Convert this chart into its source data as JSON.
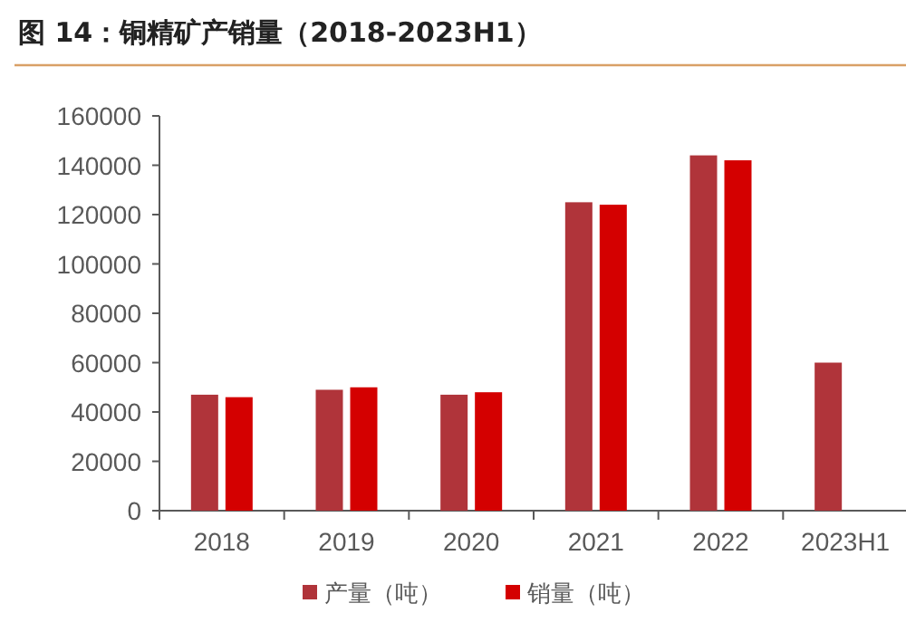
{
  "chart_data": {
    "type": "bar",
    "title": "图 14：铜精矿产销量（2018-2023H1）",
    "categories": [
      "2018",
      "2019",
      "2020",
      "2021",
      "2022",
      "2023H1"
    ],
    "series": [
      {
        "name": "产量（吨）",
        "color": "#b0343a",
        "values": [
          47000,
          49000,
          47000,
          125000,
          144000,
          60000
        ]
      },
      {
        "name": "销量（吨）",
        "color": "#d40000",
        "values": [
          46000,
          50000,
          48000,
          124000,
          142000,
          null
        ]
      }
    ],
    "ylim": [
      0,
      160000
    ],
    "yticks": [
      0,
      20000,
      40000,
      60000,
      80000,
      100000,
      120000,
      140000,
      160000
    ],
    "legend": "bottom"
  }
}
